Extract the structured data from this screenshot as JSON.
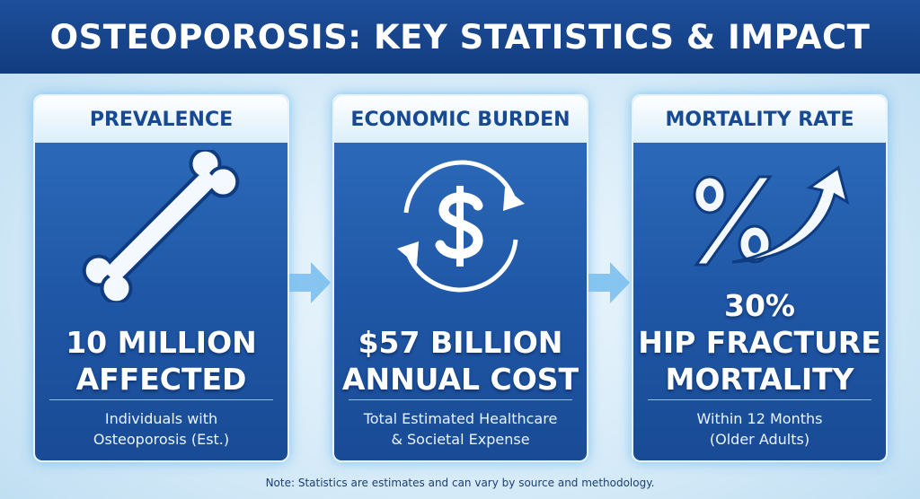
{
  "header": {
    "title": "OSTEOPOROSIS: KEY STATISTICS & IMPACT"
  },
  "cards": [
    {
      "heading": "PREVALENCE",
      "stat": [
        "10 MILLION",
        "AFFECTED"
      ],
      "description": [
        "Individuals with",
        "Osteoporosis (Est.)"
      ]
    },
    {
      "heading": "ECONOMIC BURDEN",
      "stat": [
        "$57 BILLION",
        "ANNUAL COST"
      ],
      "description": [
        "Total Estimated Healthcare",
        "& Societal Expense"
      ]
    },
    {
      "heading": "MORTALITY RATE",
      "stat": [
        "30%",
        "HIP FRACTURE",
        "MORTALITY"
      ],
      "description": [
        "Within 12 Months",
        "(Older Adults)"
      ]
    }
  ],
  "note": "Note: Statistics are estimates and can vary by source and methodology."
}
